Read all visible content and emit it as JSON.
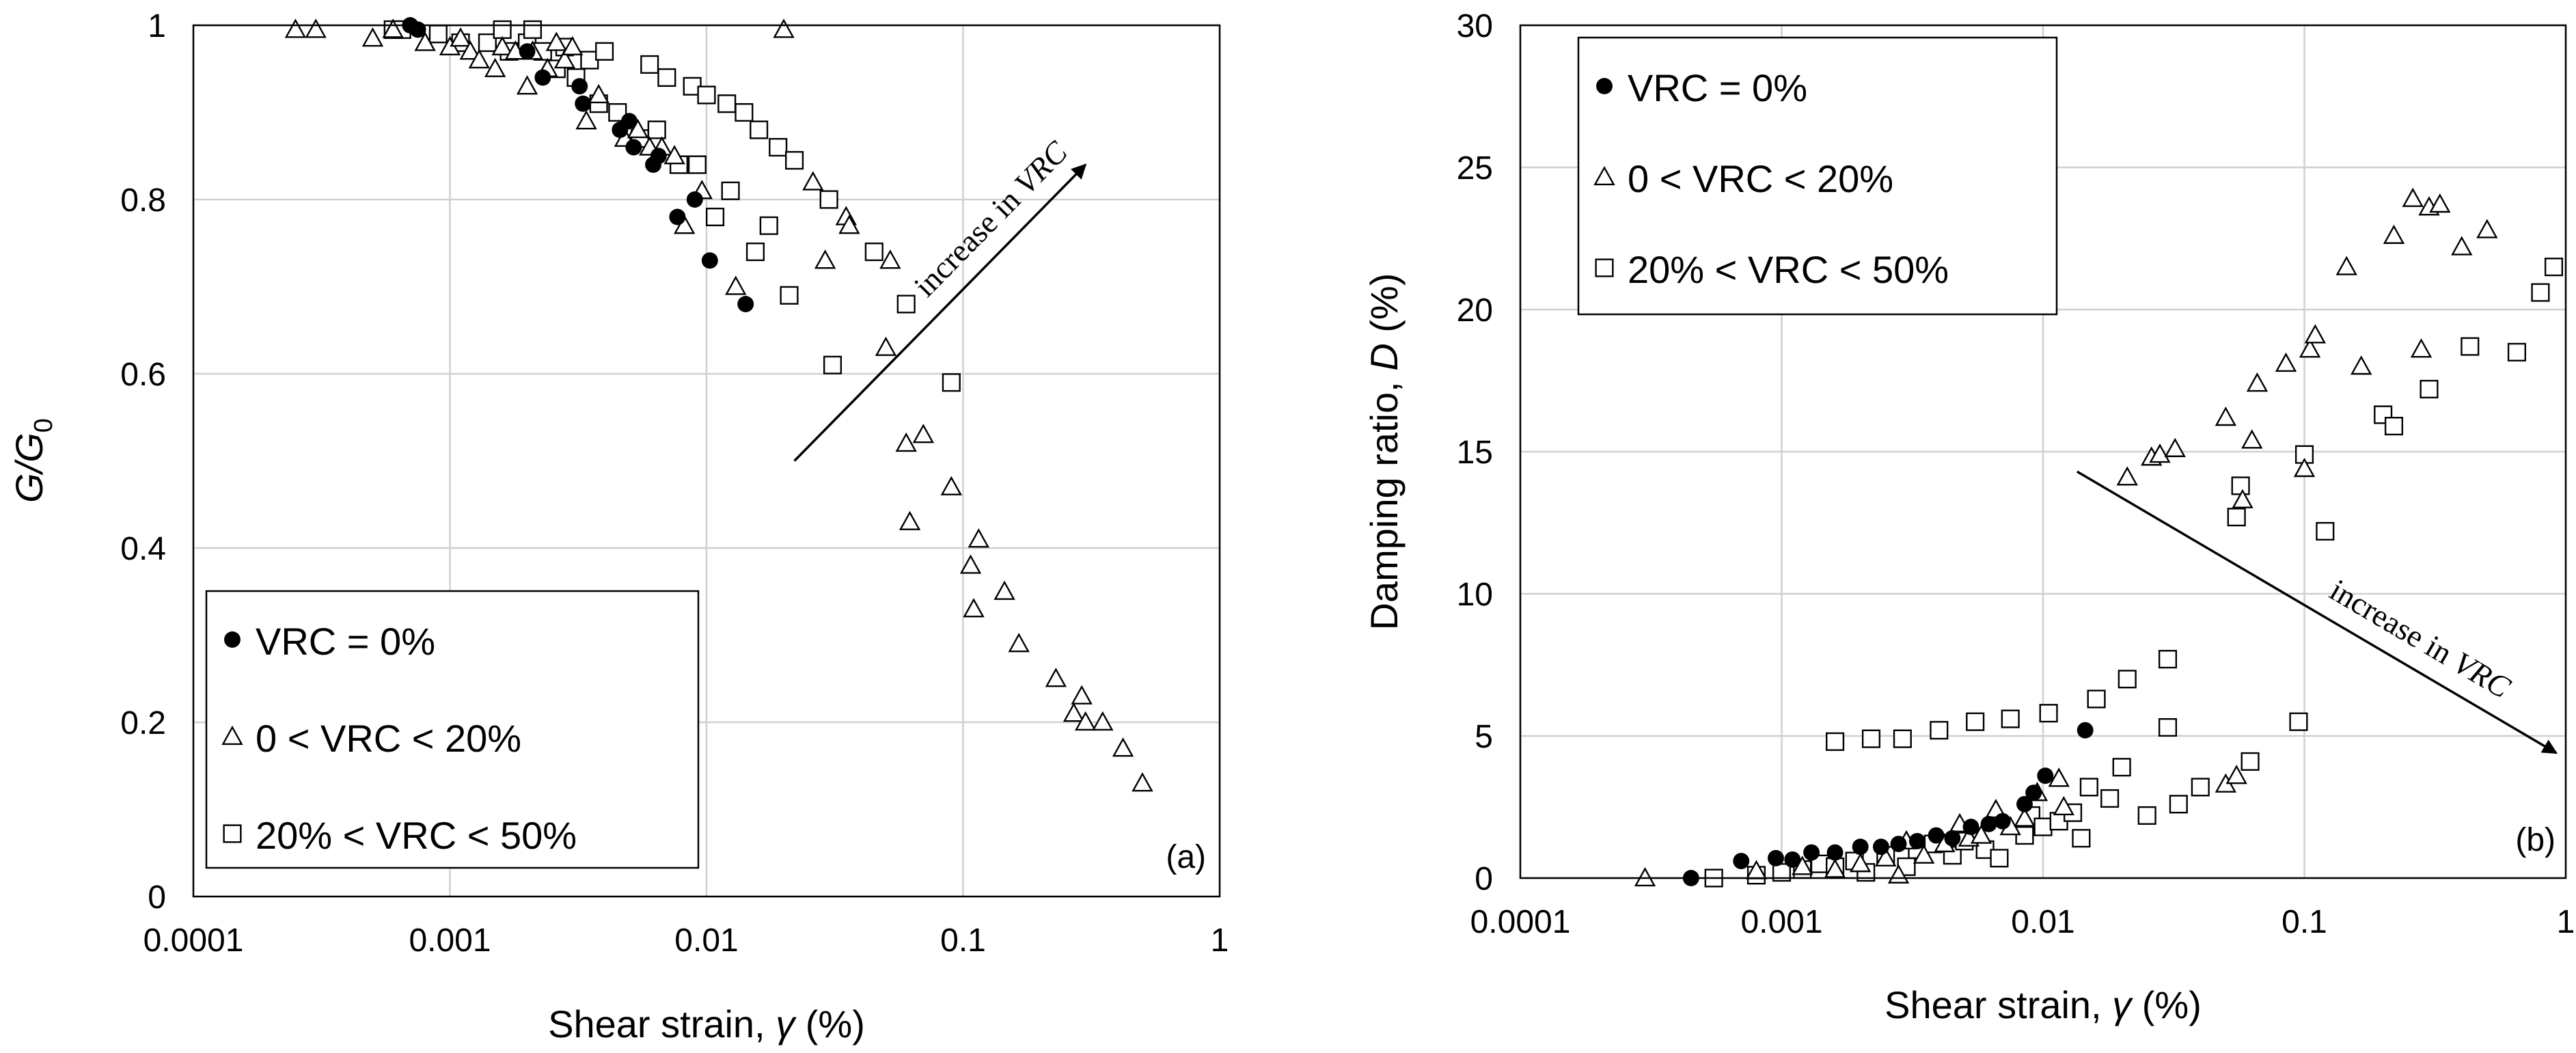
{
  "chart_data": [
    {
      "type": "scatter",
      "panel_label": "(a)",
      "title": "",
      "ylabel": "G/G",
      "ylabel_sub": "0",
      "xlabel": "Shear strain, ",
      "xlabel_symbol": "γ",
      "xlabel_unit": " (%)",
      "x_scale": "log",
      "xlim": [
        0.0001,
        1
      ],
      "ylim": [
        0,
        1
      ],
      "x_ticks": [
        0.0001,
        0.001,
        0.01,
        0.1,
        1
      ],
      "x_tick_labels": [
        "0.0001",
        "0.001",
        "0.01",
        "0.1",
        "1"
      ],
      "y_ticks": [
        0,
        0.2,
        0.4,
        0.6,
        0.8,
        1
      ],
      "y_tick_labels": [
        "0",
        "0.2",
        "0.4",
        "0.6",
        "0.8",
        "1"
      ],
      "grid": true,
      "legend_position": "bottom-left",
      "annotation": {
        "text": "increase in ",
        "italic": "VRC",
        "from": [
          0.022,
          0.5
        ],
        "to": [
          0.3,
          0.84
        ]
      },
      "series": [
        {
          "name": "VRC = 0%",
          "marker": "circle-filled",
          "points": [
            [
              0.0007,
              1
            ],
            [
              0.00075,
              0.995
            ],
            [
              0.002,
              0.97
            ],
            [
              0.0023,
              0.94
            ],
            [
              0.0032,
              0.93
            ],
            [
              0.0033,
              0.91
            ],
            [
              0.0046,
              0.88
            ],
            [
              0.005,
              0.89
            ],
            [
              0.0052,
              0.86
            ],
            [
              0.0062,
              0.84
            ],
            [
              0.0065,
              0.85
            ],
            [
              0.0077,
              0.78
            ],
            [
              0.009,
              0.8
            ],
            [
              0.0103,
              0.73
            ],
            [
              0.0142,
              0.68
            ]
          ]
        },
        {
          "name": "0 < VRC < 20%",
          "marker": "triangle-open",
          "points": [
            [
              0.00025,
              0.995
            ],
            [
              0.0003,
              0.995
            ],
            [
              0.0005,
              0.985
            ],
            [
              0.0006,
              0.995
            ],
            [
              0.0008,
              0.98
            ],
            [
              0.001,
              0.975
            ],
            [
              0.0011,
              0.985
            ],
            [
              0.0012,
              0.97
            ],
            [
              0.0013,
              0.96
            ],
            [
              0.0015,
              0.95
            ],
            [
              0.0016,
              0.975
            ],
            [
              0.0018,
              0.97
            ],
            [
              0.002,
              0.93
            ],
            [
              0.0021,
              0.97
            ],
            [
              0.0024,
              0.95
            ],
            [
              0.0026,
              0.98
            ],
            [
              0.0028,
              0.96
            ],
            [
              0.003,
              0.975
            ],
            [
              0.0034,
              0.89
            ],
            [
              0.0038,
              0.92
            ],
            [
              0.0048,
              0.87
            ],
            [
              0.0054,
              0.88
            ],
            [
              0.006,
              0.86
            ],
            [
              0.0067,
              0.86
            ],
            [
              0.0075,
              0.85
            ],
            [
              0.0082,
              0.77
            ],
            [
              0.0096,
              0.81
            ],
            [
              0.013,
              0.7
            ],
            [
              0.02,
              0.995
            ],
            [
              0.026,
              0.82
            ],
            [
              0.029,
              0.73
            ],
            [
              0.035,
              0.78
            ],
            [
              0.036,
              0.77
            ],
            [
              0.05,
              0.63
            ],
            [
              0.052,
              0.73
            ],
            [
              0.06,
              0.52
            ],
            [
              0.062,
              0.43
            ],
            [
              0.07,
              0.53
            ],
            [
              0.09,
              0.47
            ],
            [
              0.107,
              0.38
            ],
            [
              0.11,
              0.33
            ],
            [
              0.115,
              0.41
            ],
            [
              0.145,
              0.35
            ],
            [
              0.165,
              0.29
            ],
            [
              0.23,
              0.25
            ],
            [
              0.27,
              0.21
            ],
            [
              0.29,
              0.23
            ],
            [
              0.3,
              0.2
            ],
            [
              0.35,
              0.2
            ],
            [
              0.42,
              0.17
            ],
            [
              0.5,
              0.13
            ]
          ]
        },
        {
          "name": "20% < VRC < 50%",
          "marker": "square-open",
          "points": [
            [
              0.0006,
              0.995
            ],
            [
              0.00065,
              0.995
            ],
            [
              0.0009,
              0.99
            ],
            [
              0.0011,
              0.98
            ],
            [
              0.0014,
              0.98
            ],
            [
              0.0016,
              0.995
            ],
            [
              0.0017,
              0.97
            ],
            [
              0.002,
              0.98
            ],
            [
              0.0021,
              0.995
            ],
            [
              0.0023,
              0.97
            ],
            [
              0.0026,
              0.95
            ],
            [
              0.0028,
              0.975
            ],
            [
              0.0031,
              0.94
            ],
            [
              0.0035,
              0.96
            ],
            [
              0.0038,
              0.91
            ],
            [
              0.004,
              0.97
            ],
            [
              0.0045,
              0.9
            ],
            [
              0.0055,
              0.87
            ],
            [
              0.006,
              0.955
            ],
            [
              0.0064,
              0.88
            ],
            [
              0.007,
              0.94
            ],
            [
              0.0078,
              0.84
            ],
            [
              0.0088,
              0.93
            ],
            [
              0.0092,
              0.84
            ],
            [
              0.01,
              0.92
            ],
            [
              0.0108,
              0.78
            ],
            [
              0.012,
              0.91
            ],
            [
              0.0124,
              0.81
            ],
            [
              0.014,
              0.9
            ],
            [
              0.0155,
              0.74
            ],
            [
              0.016,
              0.88
            ],
            [
              0.0175,
              0.77
            ],
            [
              0.019,
              0.86
            ],
            [
              0.021,
              0.69
            ],
            [
              0.022,
              0.845
            ],
            [
              0.03,
              0.8
            ],
            [
              0.031,
              0.61
            ],
            [
              0.045,
              0.74
            ],
            [
              0.06,
              0.68
            ],
            [
              0.09,
              0.59
            ]
          ]
        }
      ]
    },
    {
      "type": "scatter",
      "panel_label": "(b)",
      "title": "",
      "ylabel": "Damping ratio, ",
      "ylabel_symbol": "D",
      "ylabel_unit": " (%)",
      "xlabel": "Shear strain, ",
      "xlabel_symbol": "γ",
      "xlabel_unit": " (%)",
      "x_scale": "log",
      "xlim": [
        0.0001,
        1
      ],
      "ylim": [
        0,
        30
      ],
      "x_ticks": [
        0.0001,
        0.001,
        0.01,
        0.1,
        1
      ],
      "x_tick_labels": [
        "0.0001",
        "0.001",
        "0.01",
        "0.1",
        "1"
      ],
      "y_ticks": [
        0,
        5,
        10,
        15,
        20,
        25,
        30
      ],
      "y_tick_labels": [
        "0",
        "5",
        "10",
        "15",
        "20",
        "25",
        "30"
      ],
      "grid": true,
      "legend_position": "top-left",
      "annotation": {
        "text": "increase in ",
        "italic": "VRC",
        "from": [
          0.0135,
          14.3
        ],
        "to": [
          0.92,
          4.4
        ]
      },
      "series": [
        {
          "name": "VRC = 0%",
          "marker": "circle-filled",
          "points": [
            [
              0.00045,
              0
            ],
            [
              0.0007,
              0.6
            ],
            [
              0.00095,
              0.7
            ],
            [
              0.0011,
              0.65
            ],
            [
              0.0013,
              0.9
            ],
            [
              0.0016,
              0.9
            ],
            [
              0.002,
              1.1
            ],
            [
              0.0024,
              1.1
            ],
            [
              0.0028,
              1.2
            ],
            [
              0.0033,
              1.3
            ],
            [
              0.0039,
              1.5
            ],
            [
              0.0045,
              1.4
            ],
            [
              0.0053,
              1.8
            ],
            [
              0.0062,
              1.9
            ],
            [
              0.007,
              2.0
            ],
            [
              0.0085,
              2.6
            ],
            [
              0.0092,
              3.0
            ],
            [
              0.0102,
              3.6
            ],
            [
              0.0145,
              5.2
            ]
          ]
        },
        {
          "name": "0 < VRC < 20%",
          "marker": "triangle-open",
          "points": [
            [
              0.0003,
              0
            ],
            [
              0.0008,
              0.25
            ],
            [
              0.0012,
              0.4
            ],
            [
              0.0016,
              0.3
            ],
            [
              0.002,
              0.5
            ],
            [
              0.0025,
              0.7
            ],
            [
              0.0028,
              0.1
            ],
            [
              0.003,
              1.3
            ],
            [
              0.0035,
              0.8
            ],
            [
              0.0042,
              1.2
            ],
            [
              0.0048,
              1.9
            ],
            [
              0.0052,
              1.4
            ],
            [
              0.0058,
              1.5
            ],
            [
              0.0066,
              2.4
            ],
            [
              0.0075,
              1.8
            ],
            [
              0.0085,
              2.1
            ],
            [
              0.0095,
              3.0
            ],
            [
              0.0115,
              3.5
            ],
            [
              0.012,
              2.5
            ],
            [
              0.021,
              14.1
            ],
            [
              0.026,
              14.8
            ],
            [
              0.028,
              14.9
            ],
            [
              0.032,
              15.1
            ],
            [
              0.05,
              3.3
            ],
            [
              0.05,
              16.2
            ],
            [
              0.055,
              3.6
            ],
            [
              0.058,
              13.3
            ],
            [
              0.063,
              15.4
            ],
            [
              0.066,
              17.4
            ],
            [
              0.085,
              18.1
            ],
            [
              0.1,
              14.4
            ],
            [
              0.105,
              18.6
            ],
            [
              0.11,
              19.1
            ],
            [
              0.145,
              21.5
            ],
            [
              0.165,
              18.0
            ],
            [
              0.22,
              22.6
            ],
            [
              0.26,
              23.9
            ],
            [
              0.28,
              18.6
            ],
            [
              0.3,
              23.6
            ],
            [
              0.33,
              23.7
            ],
            [
              0.4,
              22.2
            ],
            [
              0.5,
              22.8
            ]
          ]
        },
        {
          "name": "20% < VRC < 50%",
          "marker": "square-open",
          "points": [
            [
              0.00055,
              0
            ],
            [
              0.0008,
              0.1
            ],
            [
              0.001,
              0.2
            ],
            [
              0.0012,
              0.3
            ],
            [
              0.0014,
              0.5
            ],
            [
              0.0016,
              0.4
            ],
            [
              0.0016,
              4.8
            ],
            [
              0.0019,
              0.6
            ],
            [
              0.0021,
              0.2
            ],
            [
              0.0022,
              4.9
            ],
            [
              0.0025,
              0.8
            ],
            [
              0.0029,
              4.9
            ],
            [
              0.003,
              0.4
            ],
            [
              0.0033,
              1.0
            ],
            [
              0.0038,
              1.2
            ],
            [
              0.004,
              5.2
            ],
            [
              0.0045,
              0.8
            ],
            [
              0.005,
              1.3
            ],
            [
              0.0055,
              5.5
            ],
            [
              0.006,
              1.0
            ],
            [
              0.0068,
              0.7
            ],
            [
              0.0075,
              5.6
            ],
            [
              0.0085,
              1.5
            ],
            [
              0.009,
              2.2
            ],
            [
              0.01,
              1.8
            ],
            [
              0.0105,
              5.8
            ],
            [
              0.0115,
              2.0
            ],
            [
              0.013,
              2.3
            ],
            [
              0.014,
              1.4
            ],
            [
              0.015,
              3.2
            ],
            [
              0.016,
              6.3
            ],
            [
              0.018,
              2.8
            ],
            [
              0.02,
              3.9
            ],
            [
              0.021,
              7.0
            ],
            [
              0.025,
              2.2
            ],
            [
              0.03,
              7.7
            ],
            [
              0.03,
              5.3
            ],
            [
              0.033,
              2.6
            ],
            [
              0.04,
              3.2
            ],
            [
              0.055,
              12.7
            ],
            [
              0.057,
              13.8
            ],
            [
              0.062,
              4.1
            ],
            [
              0.095,
              5.5
            ],
            [
              0.1,
              14.9
            ],
            [
              0.12,
              12.2
            ],
            [
              0.2,
              16.3
            ],
            [
              0.22,
              15.9
            ],
            [
              0.3,
              17.2
            ],
            [
              0.43,
              18.7
            ],
            [
              0.65,
              18.5
            ],
            [
              0.8,
              20.6
            ],
            [
              0.9,
              21.5
            ]
          ]
        }
      ]
    }
  ]
}
